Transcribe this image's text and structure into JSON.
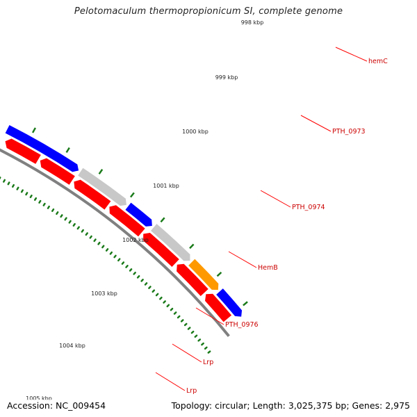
{
  "title": "Pelotomaculum thermopropionicum SI, complete genome",
  "accession": "Accession: NC_009454",
  "topology": "Topology: circular; Length: 3,025,375 bp; Genes: 2,975",
  "ruler_labels": [
    "998 kbp",
    "999 kbp",
    "1000 kbp",
    "1001 kbp",
    "1002 kbp",
    "1003 kbp",
    "1004 kbp",
    "1005 kbp"
  ],
  "gene_labels": [
    "hemC",
    "PTH_0973",
    "PTH_0974",
    "HemB",
    "PTH_0976",
    "Lrp",
    "Lrp"
  ],
  "colors": {
    "forward_cds": "#ff0000",
    "reverse_cds": "#0000ff",
    "gray_cds": "#c8c8c8",
    "orange_cds": "#ff9900",
    "backbone": "#808080",
    "ticks": "#1a7a1a",
    "label_text": "#cc0000",
    "label_line": "#ff0000"
  }
}
